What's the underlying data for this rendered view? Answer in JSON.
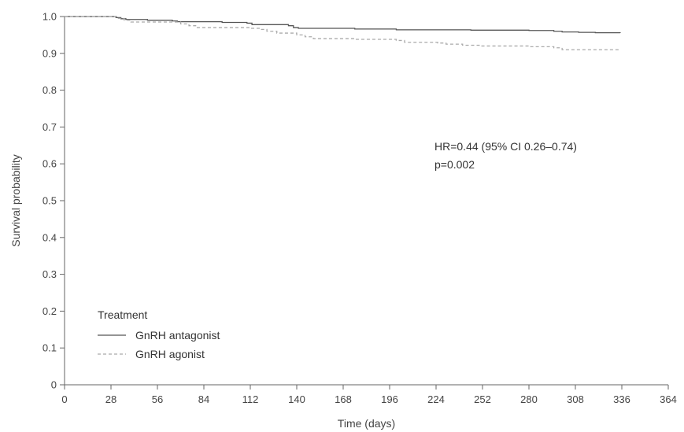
{
  "chart_data": {
    "type": "line",
    "xlabel": "Time (days)",
    "ylabel": "Survival probability",
    "xlim": [
      0,
      364
    ],
    "ylim": [
      0,
      1.0
    ],
    "xticks": [
      0,
      28,
      56,
      84,
      112,
      140,
      168,
      196,
      224,
      252,
      280,
      308,
      336,
      364
    ],
    "yticks": [
      "0",
      "0.1",
      "0.2",
      "0.3",
      "0.4",
      "0.5",
      "0.6",
      "0.7",
      "0.8",
      "0.9",
      "1.0"
    ],
    "grid": false,
    "step": true,
    "annotation": [
      "HR=0.44 (95% CI 0.26–0.74)",
      "p=0.002"
    ],
    "legend": {
      "title": "Treatment",
      "placement": "bottom-left"
    },
    "series": [
      {
        "name": "GnRH antagonist",
        "color": "#555555",
        "style": "solid",
        "x": [
          0,
          28,
          31,
          34,
          37,
          50,
          65,
          68,
          95,
          110,
          113,
          135,
          138,
          141,
          175,
          200,
          245,
          280,
          295,
          300,
          310,
          320,
          335
        ],
        "y": [
          1.0,
          1.0,
          0.997,
          0.994,
          0.992,
          0.99,
          0.988,
          0.986,
          0.984,
          0.982,
          0.978,
          0.975,
          0.97,
          0.968,
          0.966,
          0.964,
          0.963,
          0.962,
          0.96,
          0.958,
          0.957,
          0.956,
          0.955
        ]
      },
      {
        "name": "GnRH agonist",
        "color": "#aaaaaa",
        "style": "dashed",
        "x": [
          0,
          28,
          32,
          36,
          40,
          70,
          75,
          80,
          112,
          118,
          122,
          128,
          140,
          145,
          150,
          175,
          200,
          205,
          225,
          230,
          240,
          250,
          280,
          295,
          300,
          335
        ],
        "y": [
          1.0,
          1.0,
          0.995,
          0.99,
          0.985,
          0.98,
          0.975,
          0.97,
          0.968,
          0.965,
          0.96,
          0.955,
          0.95,
          0.945,
          0.94,
          0.938,
          0.935,
          0.93,
          0.928,
          0.925,
          0.922,
          0.92,
          0.918,
          0.915,
          0.91,
          0.908
        ]
      }
    ]
  }
}
